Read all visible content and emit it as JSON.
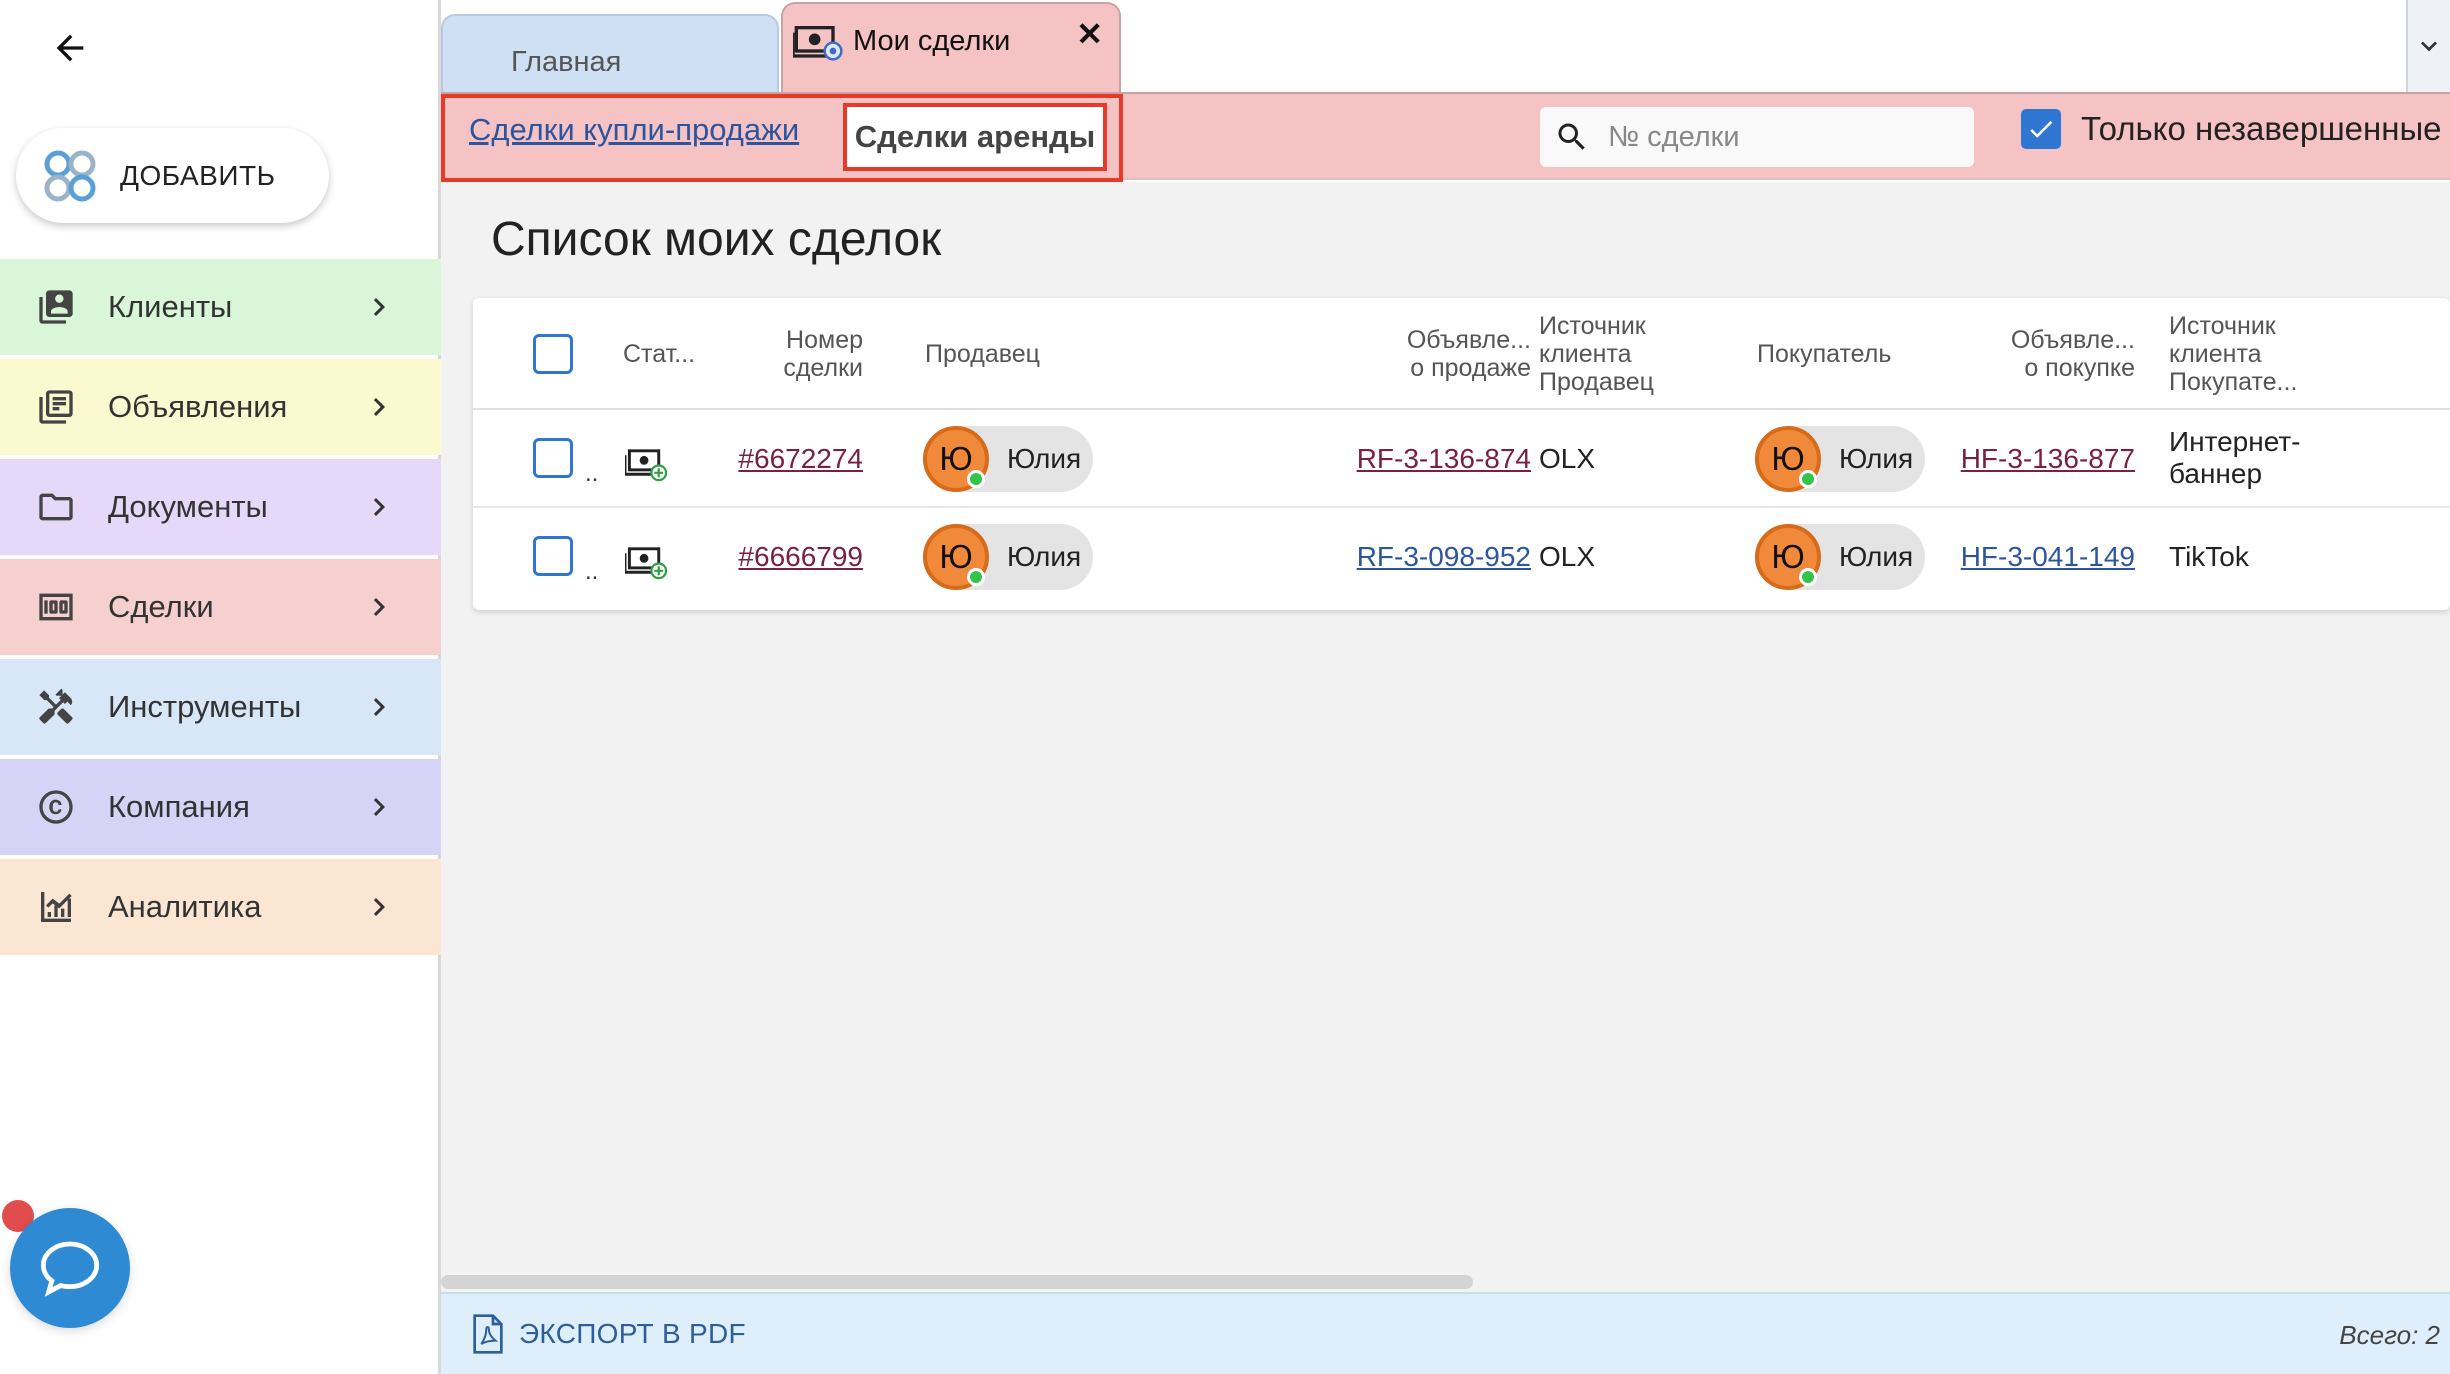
{
  "sidebar": {
    "add_label": "ДОБАВИТЬ",
    "items": [
      {
        "label": "Клиенты",
        "color": "#d9f6d9",
        "icon": "contacts-icon"
      },
      {
        "label": "Объявления",
        "color": "#fbf9cf",
        "icon": "listings-icon"
      },
      {
        "label": "Документы",
        "color": "#e5d8f8",
        "icon": "folder-icon"
      },
      {
        "label": "Сделки",
        "color": "#f6cfcf",
        "icon": "money-icon"
      },
      {
        "label": "Инструменты",
        "color": "#d8e7f8",
        "icon": "tools-icon"
      },
      {
        "label": "Компания",
        "color": "#d5d4f6",
        "icon": "copyright-icon"
      },
      {
        "label": "Аналитика",
        "color": "#fbe5d3",
        "icon": "analytics-icon"
      }
    ]
  },
  "tabs": {
    "home": "Главная",
    "deals": "Мои сделки",
    "close": "✕"
  },
  "toolbar": {
    "subtab_sale": "Сделки купли-продажи",
    "subtab_rent": "Сделки аренды",
    "search_placeholder": "№ сделки",
    "only_open_label": "Только незавершенные"
  },
  "page": {
    "title": "Список моих сделок"
  },
  "table": {
    "headers": {
      "status": "Стат...",
      "deal_no": [
        "Номер",
        "сделки"
      ],
      "seller": "Продавец",
      "sale_ad": [
        "Объявле...",
        "о продаже"
      ],
      "seller_source": [
        "Источник",
        "клиента",
        "Продавец"
      ],
      "buyer": "Покупатель",
      "buy_ad": [
        "Объявле...",
        "о покупке"
      ],
      "buyer_source": [
        "Источник",
        "клиента",
        "Покупате..."
      ]
    },
    "rows": [
      {
        "dots": "..",
        "deal_no": "#6672274",
        "seller_initial": "Ю",
        "seller_name": "Юлия",
        "sale_ad": "RF-3-136-874",
        "seller_source": "OLX",
        "buyer_initial": "Ю",
        "buyer_name": "Юлия",
        "buy_ad": "HF-3-136-877",
        "buyer_source": [
          "Интернет-",
          "баннер"
        ]
      },
      {
        "dots": "..",
        "deal_no": "#6666799",
        "seller_initial": "Ю",
        "seller_name": "Юлия",
        "sale_ad": "RF-3-098-952",
        "seller_source": "OLX",
        "buyer_initial": "Ю",
        "buyer_name": "Юлия",
        "buy_ad": "HF-3-041-149",
        "buyer_source": [
          "TikTok"
        ]
      }
    ]
  },
  "footer": {
    "export_label": "ЭКСПОРТ В PDF",
    "total": "Всего: 2"
  }
}
